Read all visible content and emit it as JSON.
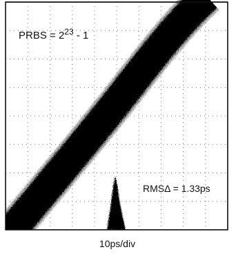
{
  "annotations": {
    "prbs": {
      "base": "PRBS = 2",
      "exponent": "23",
      "tail": " - 1"
    },
    "rms": "RMSΔ = 1.33ps"
  },
  "x_scale": "10ps/div"
}
